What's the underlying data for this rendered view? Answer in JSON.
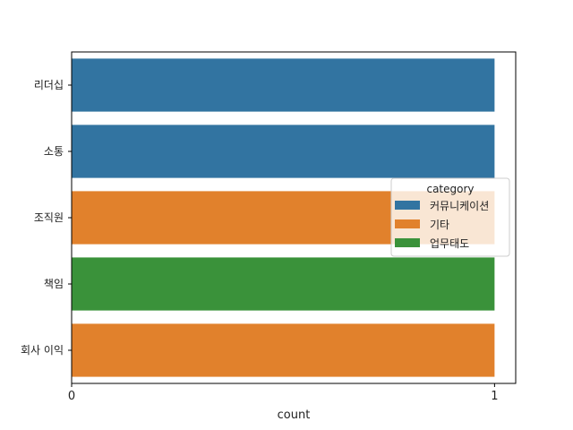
{
  "chart_data": {
    "type": "bar",
    "orientation": "horizontal",
    "categories": [
      "리더십",
      "소통",
      "조직원",
      "책임",
      "회사 이익"
    ],
    "values": [
      1,
      1,
      1,
      1,
      1
    ],
    "bar_category": [
      "커뮤니케이션",
      "커뮤니케이션",
      "기타",
      "업무태도",
      "기타"
    ],
    "xlabel": "count",
    "ylabel": "",
    "xlim": [
      0,
      1.05
    ],
    "xticks": [
      0,
      1
    ],
    "grid": false,
    "legend": {
      "title": "category",
      "placement": "center-right",
      "entries": [
        {
          "label": "커뮤니케이션",
          "color": "#3274a1"
        },
        {
          "label": "기타",
          "color": "#e1812c"
        },
        {
          "label": "업무태도",
          "color": "#3a923a"
        }
      ]
    }
  }
}
